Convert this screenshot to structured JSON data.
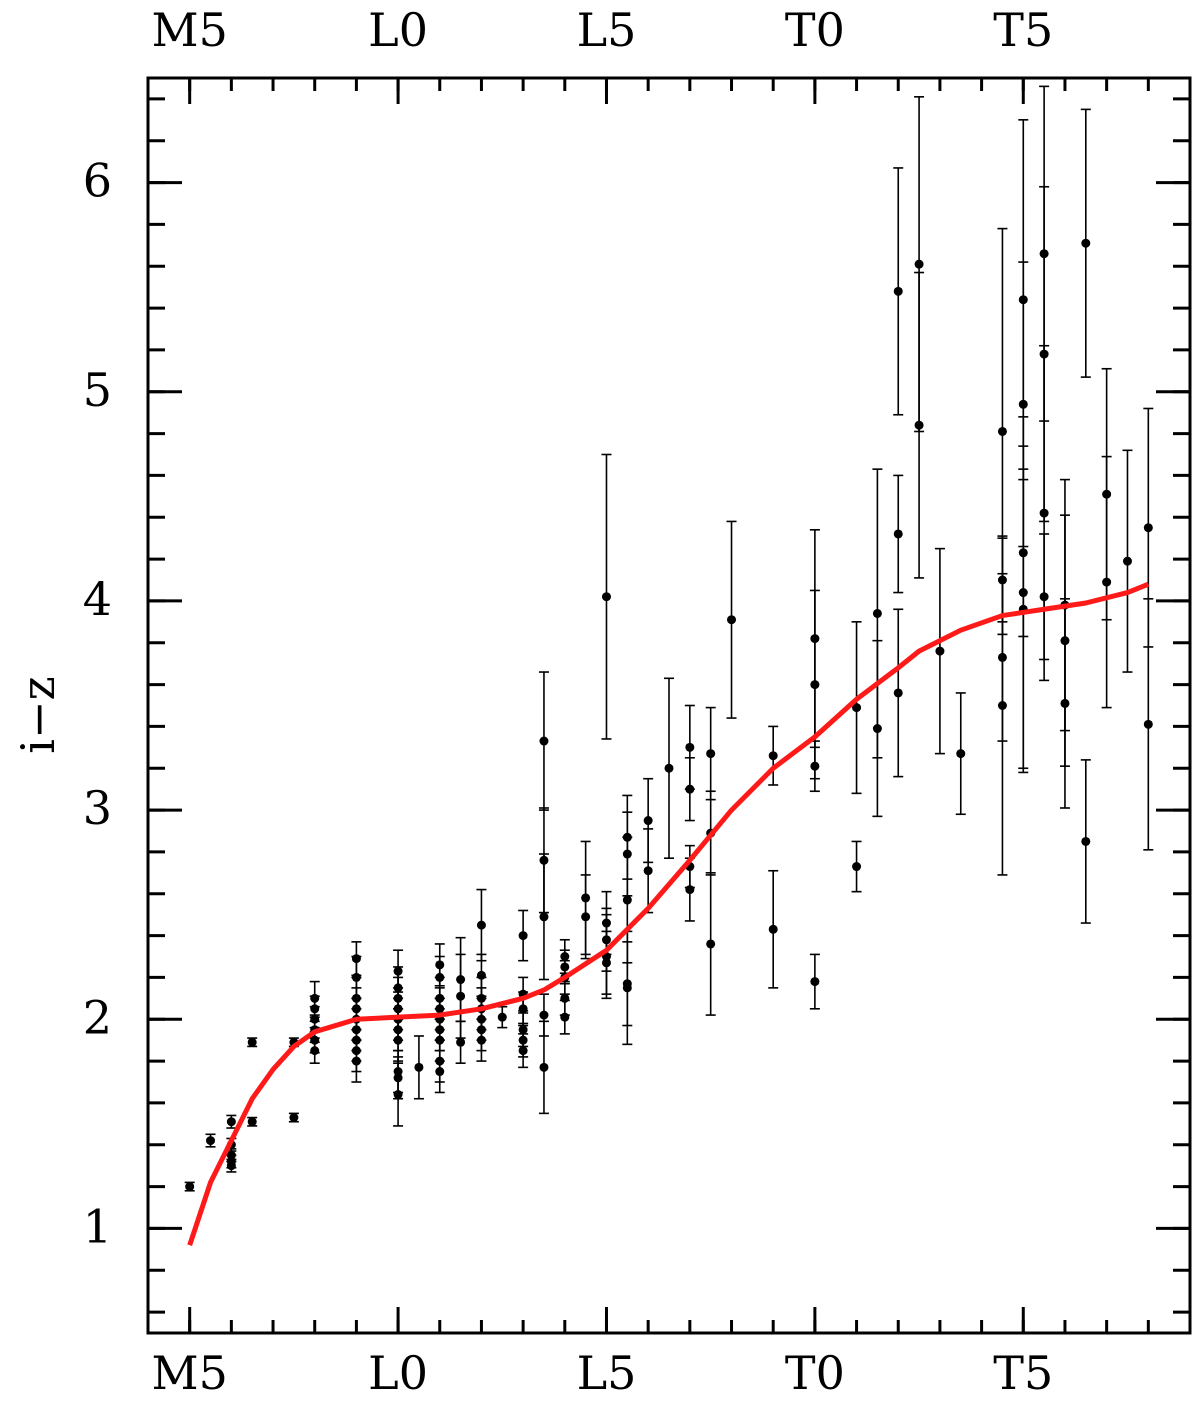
{
  "chart_data": {
    "type": "scatter",
    "ylabel": "i−z",
    "xlim": [
      4,
      29
    ],
    "ylim": [
      0.5,
      6.5
    ],
    "xticks": [
      {
        "value": 5,
        "label": "M5"
      },
      {
        "value": 10,
        "label": "L0"
      },
      {
        "value": 15,
        "label": "L5"
      },
      {
        "value": 20,
        "label": "T0"
      },
      {
        "value": 25,
        "label": "T5"
      }
    ],
    "xminorticks": [
      5,
      6,
      7,
      8,
      9,
      10,
      11,
      12,
      13,
      14,
      15,
      16,
      17,
      18,
      19,
      20,
      21,
      22,
      23,
      24,
      25,
      26,
      27,
      28
    ],
    "yticks": [
      1,
      2,
      3,
      4,
      5,
      6
    ],
    "yminorticks": [
      0.6,
      0.8,
      1,
      1.2,
      1.4,
      1.6,
      1.8,
      2,
      2.2,
      2.4,
      2.6,
      2.8,
      3,
      3.2,
      3.4,
      3.6,
      3.8,
      4,
      4.2,
      4.4,
      4.6,
      4.8,
      5,
      5.2,
      5.4,
      5.6,
      5.8,
      6,
      6.2,
      6.4
    ],
    "series": [
      {
        "type": "scatter",
        "color": "#000000",
        "x": [
          5,
          5.5,
          6,
          6,
          6,
          6,
          6,
          6.5,
          6.5,
          7.5,
          7.5,
          8,
          8,
          8,
          8,
          8,
          8,
          9,
          9,
          9,
          9,
          9,
          9,
          9,
          9,
          9,
          10,
          10,
          10,
          10,
          10,
          10,
          10,
          10,
          10,
          10,
          10.5,
          11,
          11,
          11,
          11,
          11,
          11,
          11,
          11,
          11,
          11.5,
          11.5,
          11.5,
          12,
          12,
          12,
          12,
          12,
          12,
          12,
          12.5,
          13,
          13,
          13,
          13,
          13,
          13,
          13.5,
          13.5,
          13.5,
          13.5,
          13.5,
          14,
          14,
          14,
          14,
          14,
          14.5,
          14.5,
          15,
          15,
          15,
          15,
          15,
          15.5,
          15.5,
          15.5,
          15.5,
          15.5,
          16,
          16,
          16.5,
          17,
          17,
          17,
          17,
          17.5,
          17.5,
          17.5,
          18,
          19,
          19,
          20,
          20,
          20,
          20,
          21,
          21,
          21.5,
          21.5,
          22,
          22,
          22,
          22.5,
          22.5,
          23,
          23.5,
          24.5,
          24.5,
          24.5,
          24.5,
          25,
          25,
          25,
          25,
          25,
          25.5,
          25.5,
          25.5,
          25.5,
          26,
          26,
          26,
          26.5,
          26.5,
          27,
          27,
          27.5,
          28,
          28
        ],
        "values": [
          1.2,
          1.42,
          1.51,
          1.4,
          1.35,
          1.32,
          1.3,
          1.89,
          1.51,
          1.89,
          1.53,
          2.1,
          2.05,
          2.0,
          1.95,
          1.9,
          1.85,
          2.29,
          2.2,
          2.1,
          2.05,
          2.0,
          1.95,
          1.9,
          1.85,
          1.8,
          2.23,
          2.15,
          2.1,
          2.05,
          2.0,
          1.95,
          1.9,
          1.75,
          1.72,
          1.64,
          1.77,
          2.26,
          2.2,
          2.1,
          2.05,
          2.0,
          1.95,
          1.9,
          1.8,
          1.75,
          2.19,
          2.11,
          1.89,
          2.45,
          2.21,
          2.1,
          2.05,
          2.0,
          1.95,
          1.9,
          2.01,
          2.4,
          2.12,
          2.05,
          1.95,
          1.9,
          1.85,
          3.33,
          2.76,
          2.49,
          2.02,
          1.77,
          2.3,
          2.25,
          2.2,
          2.1,
          2.01,
          2.58,
          2.49,
          4.02,
          2.46,
          2.38,
          2.3,
          2.27,
          2.87,
          2.79,
          2.57,
          2.17,
          2.15,
          2.95,
          2.71,
          3.2,
          3.3,
          3.1,
          2.73,
          2.62,
          3.27,
          2.89,
          2.36,
          3.91,
          3.26,
          2.43,
          3.82,
          3.6,
          3.21,
          2.18,
          3.49,
          2.73,
          3.94,
          3.39,
          5.48,
          4.32,
          3.56,
          5.61,
          4.84,
          3.76,
          3.27,
          4.81,
          4.1,
          3.73,
          3.5,
          5.44,
          4.94,
          4.23,
          4.04,
          3.96,
          5.66,
          5.18,
          4.42,
          4.02,
          3.98,
          3.81,
          3.51,
          5.71,
          2.85,
          4.51,
          4.09,
          4.19,
          4.35,
          3.41
        ],
        "errors": [
          0.02,
          0.03,
          0.03,
          0.03,
          0.03,
          0.03,
          0.03,
          0.02,
          0.02,
          0.02,
          0.02,
          0.08,
          0.06,
          0.06,
          0.06,
          0.06,
          0.06,
          0.08,
          0.1,
          0.1,
          0.1,
          0.1,
          0.1,
          0.1,
          0.1,
          0.1,
          0.1,
          0.1,
          0.1,
          0.1,
          0.1,
          0.1,
          0.1,
          0.1,
          0.1,
          0.15,
          0.15,
          0.1,
          0.1,
          0.1,
          0.1,
          0.1,
          0.1,
          0.1,
          0.1,
          0.1,
          0.2,
          0.2,
          0.1,
          0.17,
          0.1,
          0.1,
          0.1,
          0.1,
          0.1,
          0.1,
          0.05,
          0.12,
          0.08,
          0.08,
          0.08,
          0.08,
          0.08,
          0.33,
          0.25,
          0.3,
          0.1,
          0.22,
          0.08,
          0.08,
          0.08,
          0.08,
          0.08,
          0.27,
          0.2,
          0.68,
          0.15,
          0.15,
          0.2,
          0.15,
          0.2,
          0.2,
          0.3,
          0.2,
          0.27,
          0.2,
          0.2,
          0.43,
          0.2,
          0.15,
          0.1,
          0.15,
          0.22,
          0.2,
          0.34,
          0.47,
          0.14,
          0.28,
          0.52,
          0.45,
          0.12,
          0.13,
          0.41,
          0.12,
          0.69,
          0.42,
          0.59,
          0.28,
          0.4,
          0.8,
          0.73,
          0.49,
          0.29,
          0.97,
          0.2,
          0.4,
          0.81,
          0.86,
          0.68,
          0.4,
          0.84,
          0.78,
          0.8,
          0.8,
          0.8,
          0.3,
          0.6,
          0.6,
          0.5,
          0.64,
          0.39,
          0.6,
          0.6,
          0.53,
          0.57,
          0.6
        ]
      },
      {
        "type": "line",
        "color": "#ff1a1a",
        "x": [
          5,
          5.5,
          6,
          6.5,
          7,
          7.5,
          8,
          9,
          10,
          11,
          12,
          13,
          13.5,
          14,
          15,
          16,
          17,
          18,
          19,
          20,
          21,
          22,
          22.5,
          23.5,
          24.5,
          25.5,
          26.5,
          27.5,
          28
        ],
        "values": [
          0.92,
          1.22,
          1.42,
          1.62,
          1.76,
          1.87,
          1.94,
          2.0,
          2.01,
          2.02,
          2.05,
          2.1,
          2.14,
          2.2,
          2.33,
          2.53,
          2.76,
          3.0,
          3.2,
          3.35,
          3.53,
          3.68,
          3.76,
          3.86,
          3.93,
          3.96,
          3.99,
          4.04,
          4.08
        ]
      }
    ]
  }
}
